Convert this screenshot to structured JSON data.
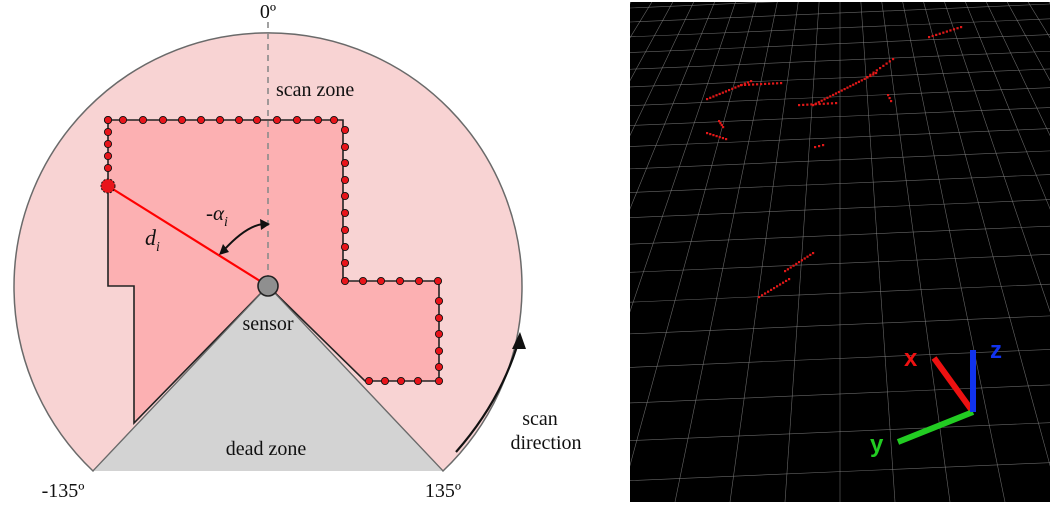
{
  "diagram": {
    "angle_top": "0º",
    "angle_left": "-135º",
    "angle_right": "135º",
    "scan_zone_label": "scan zone",
    "sensor_label": "sensor",
    "dead_zone_label": "dead zone",
    "scan_direction_line1": "scan",
    "scan_direction_line2": "direction",
    "distance_label": "d",
    "distance_sub": "i",
    "angle_label": "-α",
    "angle_sub": "i",
    "colors": {
      "scan_zone": "#f8d3d3",
      "obstacle_area": "#fcb0b2",
      "dead_zone": "#d3d3d3",
      "beam": "#ff0000",
      "points": "#e8141a"
    }
  },
  "viewer": {
    "axis_x": "x",
    "axis_y": "y",
    "axis_z": "z",
    "colors": {
      "background": "#000000",
      "grid": "#8a8a8a",
      "points": "#e01818",
      "x_axis": "#ee1111",
      "y_axis": "#22cc22",
      "z_axis": "#1133ee"
    }
  }
}
